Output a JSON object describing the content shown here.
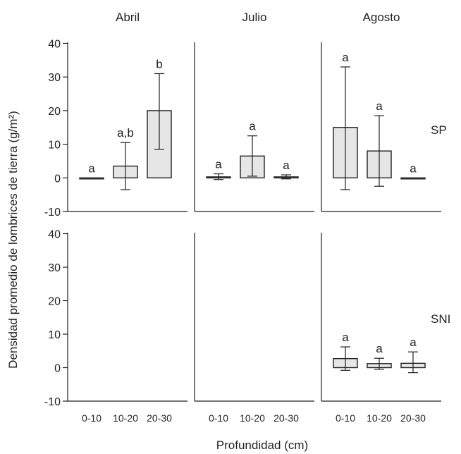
{
  "chart_data": {
    "type": "bar",
    "ylabel": "Densidad promedio de lombrices de tierra (g/m²)",
    "xlabel": "Profundidad (cm)",
    "categories": [
      "0-10",
      "10-20",
      "20-30"
    ],
    "ylim": [
      -10,
      42
    ],
    "yticks": [
      -10,
      0,
      10,
      20,
      30,
      40
    ],
    "columns": [
      "Abril",
      "Julio",
      "Agosto"
    ],
    "rows": [
      "SP",
      "SNI"
    ],
    "bar_color": "#e6e6e6",
    "panels": [
      {
        "row": "SP",
        "column": "Abril",
        "bars": [
          {
            "category": "0-10",
            "value": 0,
            "err_low": 0,
            "err_high": 0,
            "label": "a"
          },
          {
            "category": "10-20",
            "value": 3.5,
            "err_low": -3.5,
            "err_high": 10.5,
            "label": "a,b"
          },
          {
            "category": "20-30",
            "value": 20,
            "err_low": 8.5,
            "err_high": 31,
            "label": "b"
          }
        ]
      },
      {
        "row": "SP",
        "column": "Julio",
        "bars": [
          {
            "category": "0-10",
            "value": 0.3,
            "err_low": -0.5,
            "err_high": 1.2,
            "label": "a"
          },
          {
            "category": "10-20",
            "value": 6.5,
            "err_low": 0.5,
            "err_high": 12.5,
            "label": "a"
          },
          {
            "category": "20-30",
            "value": 0.3,
            "err_low": -0.3,
            "err_high": 0.9,
            "label": "a"
          }
        ]
      },
      {
        "row": "SP",
        "column": "Agosto",
        "bars": [
          {
            "category": "0-10",
            "value": 15,
            "err_low": -3.5,
            "err_high": 33,
            "label": "a"
          },
          {
            "category": "10-20",
            "value": 8,
            "err_low": -2.5,
            "err_high": 18.5,
            "label": "a"
          },
          {
            "category": "20-30",
            "value": 0,
            "err_low": 0,
            "err_high": 0,
            "label": "a"
          }
        ]
      },
      {
        "row": "SNI",
        "column": "Abril",
        "bars": []
      },
      {
        "row": "SNI",
        "column": "Julio",
        "bars": []
      },
      {
        "row": "SNI",
        "column": "Agosto",
        "bars": [
          {
            "category": "0-10",
            "value": 2.7,
            "err_low": -0.8,
            "err_high": 6.2,
            "label": "a"
          },
          {
            "category": "10-20",
            "value": 1.2,
            "err_low": -0.5,
            "err_high": 2.8,
            "label": "a"
          },
          {
            "category": "20-30",
            "value": 1.3,
            "err_low": -1.5,
            "err_high": 4.7,
            "label": "a"
          }
        ]
      }
    ]
  }
}
